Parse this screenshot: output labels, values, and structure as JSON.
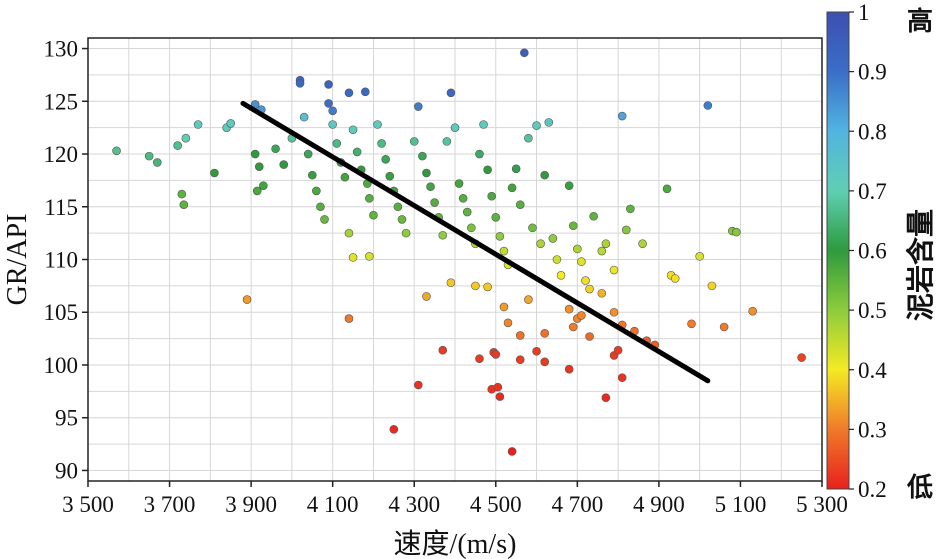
{
  "chart_data": {
    "type": "scatter",
    "xlabel": "速度/(m/s)",
    "ylabel": "GR/API",
    "xlim": [
      3500,
      5300
    ],
    "ylim": [
      89,
      131
    ],
    "xticks": [
      3500,
      3700,
      3900,
      4100,
      4300,
      4500,
      4700,
      4900,
      5100,
      5300
    ],
    "xtick_labels": [
      "3 500",
      "3 700",
      "3 900",
      "4 100",
      "4 300",
      "4 500",
      "4 700",
      "4 900",
      "5 100",
      "5 300"
    ],
    "yticks": [
      90,
      95,
      100,
      105,
      110,
      115,
      120,
      125,
      130
    ],
    "ytick_labels": [
      "90",
      "95",
      "100",
      "105",
      "110",
      "115",
      "120",
      "125",
      "130"
    ],
    "grid": true,
    "colorbar": {
      "label": "泥岩含量",
      "range": [
        0.2,
        1.0
      ],
      "ticks": [
        0.2,
        0.3,
        0.4,
        0.5,
        0.6,
        0.7,
        0.8,
        0.9,
        1.0
      ],
      "tick_labels": [
        "0.2",
        "0.3",
        "0.4",
        "0.5",
        "0.6",
        "0.7",
        "0.8",
        "0.9",
        "1"
      ],
      "high_label": "高",
      "low_label": "低",
      "colormap": [
        [
          0.2,
          "#e8201e"
        ],
        [
          0.3,
          "#f07a2a"
        ],
        [
          0.4,
          "#f4ea23"
        ],
        [
          0.5,
          "#8dcc3c"
        ],
        [
          0.6,
          "#2f9a3e"
        ],
        [
          0.7,
          "#5fcfb3"
        ],
        [
          0.8,
          "#52b4e0"
        ],
        [
          0.9,
          "#3a6ec8"
        ],
        [
          1.0,
          "#3d4fb0"
        ]
      ]
    },
    "trendline": {
      "x": [
        3880,
        5020
      ],
      "y": [
        124.8,
        98.5
      ]
    },
    "points": [
      [
        3570,
        120.3,
        0.67
      ],
      [
        3650,
        119.8,
        0.66
      ],
      [
        3670,
        119.2,
        0.65
      ],
      [
        3720,
        120.8,
        0.67
      ],
      [
        3740,
        121.5,
        0.7
      ],
      [
        3770,
        122.8,
        0.72
      ],
      [
        3730,
        116.2,
        0.55
      ],
      [
        3735,
        115.2,
        0.55
      ],
      [
        3810,
        118.2,
        0.6
      ],
      [
        3840,
        122.5,
        0.71
      ],
      [
        3850,
        122.9,
        0.72
      ],
      [
        3890,
        106.2,
        0.33
      ],
      [
        3910,
        124.7,
        0.85
      ],
      [
        3925,
        124.2,
        0.84
      ],
      [
        3910,
        120.0,
        0.6
      ],
      [
        3920,
        118.8,
        0.6
      ],
      [
        3930,
        117.0,
        0.58
      ],
      [
        3915,
        116.5,
        0.57
      ],
      [
        3960,
        120.5,
        0.62
      ],
      [
        3980,
        119.0,
        0.6
      ],
      [
        4000,
        121.5,
        0.68
      ],
      [
        4020,
        127.0,
        0.93
      ],
      [
        4020,
        126.7,
        0.92
      ],
      [
        4030,
        123.5,
        0.76
      ],
      [
        4040,
        120.0,
        0.62
      ],
      [
        4050,
        118.0,
        0.59
      ],
      [
        4060,
        116.5,
        0.57
      ],
      [
        4070,
        115.0,
        0.56
      ],
      [
        4080,
        113.8,
        0.54
      ],
      [
        4090,
        126.6,
        0.93
      ],
      [
        4090,
        124.8,
        0.9
      ],
      [
        4100,
        124.1,
        0.88
      ],
      [
        4100,
        122.8,
        0.73
      ],
      [
        4110,
        121.0,
        0.66
      ],
      [
        4120,
        119.2,
        0.61
      ],
      [
        4130,
        117.8,
        0.58
      ],
      [
        4140,
        125.8,
        0.92
      ],
      [
        4150,
        122.3,
        0.71
      ],
      [
        4160,
        120.2,
        0.64
      ],
      [
        4170,
        118.5,
        0.6
      ],
      [
        4180,
        125.9,
        0.92
      ],
      [
        4185,
        117.2,
        0.57
      ],
      [
        4190,
        115.8,
        0.56
      ],
      [
        4200,
        114.2,
        0.55
      ],
      [
        4210,
        122.8,
        0.72
      ],
      [
        4220,
        121.0,
        0.66
      ],
      [
        4230,
        119.5,
        0.62
      ],
      [
        4240,
        117.9,
        0.59
      ],
      [
        4250,
        116.5,
        0.58
      ],
      [
        4260,
        115.0,
        0.56
      ],
      [
        4270,
        113.8,
        0.54
      ],
      [
        4280,
        112.5,
        0.5
      ],
      [
        4140,
        112.5,
        0.48
      ],
      [
        4150,
        110.2,
        0.42
      ],
      [
        4190,
        110.3,
        0.43
      ],
      [
        4140,
        104.4,
        0.3
      ],
      [
        4300,
        121.2,
        0.67
      ],
      [
        4310,
        124.5,
        0.88
      ],
      [
        4320,
        119.8,
        0.62
      ],
      [
        4330,
        118.2,
        0.6
      ],
      [
        4340,
        116.9,
        0.58
      ],
      [
        4350,
        115.4,
        0.56
      ],
      [
        4360,
        114.0,
        0.55
      ],
      [
        4370,
        112.3,
        0.5
      ],
      [
        4380,
        121.2,
        0.68
      ],
      [
        4390,
        125.8,
        0.92
      ],
      [
        4400,
        122.5,
        0.72
      ],
      [
        4410,
        117.2,
        0.58
      ],
      [
        4420,
        115.8,
        0.56
      ],
      [
        4430,
        114.5,
        0.55
      ],
      [
        4440,
        113.0,
        0.52
      ],
      [
        4450,
        111.5,
        0.46
      ],
      [
        4460,
        120.0,
        0.63
      ],
      [
        4470,
        122.8,
        0.72
      ],
      [
        4480,
        118.5,
        0.6
      ],
      [
        4490,
        116.0,
        0.57
      ],
      [
        4500,
        114.0,
        0.55
      ],
      [
        4510,
        112.2,
        0.5
      ],
      [
        4520,
        110.8,
        0.45
      ],
      [
        4530,
        109.5,
        0.42
      ],
      [
        4540,
        116.8,
        0.58
      ],
      [
        4550,
        118.6,
        0.61
      ],
      [
        4560,
        115.2,
        0.56
      ],
      [
        4570,
        129.6,
        0.95
      ],
      [
        4580,
        121.5,
        0.68
      ],
      [
        4590,
        113.0,
        0.53
      ],
      [
        4600,
        122.7,
        0.72
      ],
      [
        4610,
        111.5,
        0.47
      ],
      [
        4620,
        118.0,
        0.6
      ],
      [
        4630,
        123.0,
        0.74
      ],
      [
        4640,
        112.0,
        0.5
      ],
      [
        4650,
        110.0,
        0.44
      ],
      [
        4660,
        108.5,
        0.4
      ],
      [
        4680,
        117.0,
        0.59
      ],
      [
        4690,
        113.2,
        0.54
      ],
      [
        4700,
        111.0,
        0.47
      ],
      [
        4710,
        109.8,
        0.42
      ],
      [
        4720,
        108.0,
        0.39
      ],
      [
        4730,
        107.2,
        0.38
      ],
      [
        4740,
        114.1,
        0.55
      ],
      [
        4760,
        110.8,
        0.46
      ],
      [
        4770,
        111.5,
        0.47
      ],
      [
        4790,
        109.0,
        0.41
      ],
      [
        4810,
        123.6,
        0.82
      ],
      [
        4820,
        112.8,
        0.51
      ],
      [
        4830,
        114.8,
        0.55
      ],
      [
        4860,
        111.5,
        0.47
      ],
      [
        4920,
        116.7,
        0.57
      ],
      [
        4930,
        108.5,
        0.39
      ],
      [
        4940,
        108.2,
        0.39
      ],
      [
        5000,
        110.3,
        0.43
      ],
      [
        5020,
        124.6,
        0.88
      ],
      [
        5030,
        107.5,
        0.38
      ],
      [
        5080,
        112.7,
        0.51
      ],
      [
        5090,
        112.6,
        0.51
      ],
      [
        4330,
        106.5,
        0.34
      ],
      [
        4390,
        107.8,
        0.37
      ],
      [
        4450,
        107.5,
        0.37
      ],
      [
        4480,
        107.4,
        0.37
      ],
      [
        4520,
        105.5,
        0.33
      ],
      [
        4530,
        104.0,
        0.31
      ],
      [
        4560,
        102.8,
        0.29
      ],
      [
        4580,
        106.2,
        0.34
      ],
      [
        4620,
        103.0,
        0.29
      ],
      [
        4680,
        105.3,
        0.32
      ],
      [
        4690,
        103.6,
        0.3
      ],
      [
        4700,
        104.4,
        0.31
      ],
      [
        4710,
        104.7,
        0.31
      ],
      [
        4730,
        102.7,
        0.28
      ],
      [
        4760,
        106.8,
        0.35
      ],
      [
        4790,
        105.0,
        0.32
      ],
      [
        4810,
        103.8,
        0.3
      ],
      [
        4840,
        103.2,
        0.29
      ],
      [
        4870,
        102.3,
        0.27
      ],
      [
        4890,
        101.9,
        0.27
      ],
      [
        4980,
        103.9,
        0.3
      ],
      [
        5060,
        103.6,
        0.3
      ],
      [
        5130,
        105.1,
        0.32
      ],
      [
        5250,
        100.7,
        0.24
      ],
      [
        4250,
        93.9,
        0.21
      ],
      [
        4310,
        98.1,
        0.22
      ],
      [
        4370,
        101.4,
        0.23
      ],
      [
        4460,
        100.6,
        0.23
      ],
      [
        4490,
        97.7,
        0.22
      ],
      [
        4495,
        101.2,
        0.23
      ],
      [
        4500,
        101.0,
        0.23
      ],
      [
        4505,
        97.9,
        0.22
      ],
      [
        4510,
        97.0,
        0.21
      ],
      [
        4540,
        91.8,
        0.2
      ],
      [
        4560,
        100.5,
        0.23
      ],
      [
        4600,
        101.3,
        0.23
      ],
      [
        4620,
        100.3,
        0.23
      ],
      [
        4680,
        99.6,
        0.22
      ],
      [
        4770,
        96.9,
        0.21
      ],
      [
        4790,
        100.9,
        0.23
      ],
      [
        4800,
        101.4,
        0.23
      ],
      [
        4810,
        98.8,
        0.22
      ]
    ]
  }
}
